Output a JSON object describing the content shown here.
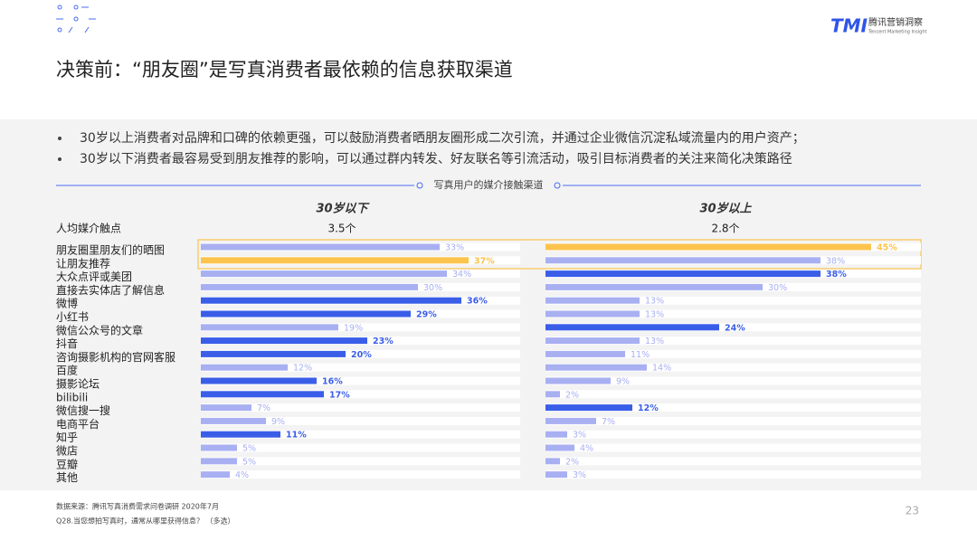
{
  "header": {
    "logo": "TMI",
    "brand": "腾讯营销洞察",
    "brand_en": "Tencent Marketing Insight"
  },
  "title": "决策前：“朋友圈”是写真消费者最依赖的信息获取渠道",
  "bullets": [
    "30岁以上消费者对品牌和口碑的依赖更强，可以鼓励消费者晒朋友圈形成二次引流，并通过企业微信沉淀私域流量内的用户资产；",
    "30岁以下消费者最容易受到朋友推荐的影响，可以通过群内转发、好友联名等引流活动，吸引目标消费者的关注来简化决策路径"
  ],
  "chart_data": {
    "type": "bar",
    "orientation": "horizontal",
    "title": "写真用户的媒介接触渠道",
    "row_header": "人均媒介触点",
    "categories": [
      "朋友圈里朋友们的晒图",
      "让朋友推荐",
      "大众点评或美团",
      "直接去实体店了解信息",
      "微博",
      "小红书",
      "微信公众号的文章",
      "抖音",
      "咨询摄影机构的官网客服",
      "百度",
      "摄影论坛",
      "bilibili",
      "微信搜一搜",
      "电商平台",
      "知乎",
      "微店",
      "豆瓣",
      "其他"
    ],
    "series": [
      {
        "name": "30岁以下",
        "subtitle": "3.5个",
        "values": [
          33,
          37,
          34,
          30,
          36,
          29,
          19,
          23,
          20,
          12,
          16,
          17,
          7,
          9,
          11,
          5,
          5,
          4
        ],
        "value_labels": [
          "33%",
          "37%",
          "34%",
          "30%",
          "36%",
          "29%",
          "19%",
          "23%",
          "20%",
          "12%",
          "16%",
          "17%",
          "7%",
          "9%",
          "11%",
          "5%",
          "5%",
          "4%"
        ],
        "colors": [
          "#a8b0f2",
          "#fcc34d",
          "#a8b0f2",
          "#a8b0f2",
          "#3a5ee8",
          "#3a5ee8",
          "#a8b0f2",
          "#3a5ee8",
          "#3a5ee8",
          "#a8b0f2",
          "#3a5ee8",
          "#3a5ee8",
          "#a8b0f2",
          "#a8b0f2",
          "#3a5ee8",
          "#a8b0f2",
          "#a8b0f2",
          "#a8b0f2"
        ]
      },
      {
        "name": "30岁以上",
        "subtitle": "2.8个",
        "values": [
          45,
          38,
          38,
          30,
          13,
          13,
          24,
          13,
          11,
          14,
          9,
          2,
          12,
          7,
          3,
          4,
          2,
          3
        ],
        "value_labels": [
          "45%",
          "38%",
          "38%",
          "30%",
          "13%",
          "13%",
          "24%",
          "13%",
          "11%",
          "14%",
          "9%",
          "2%",
          "12%",
          "7%",
          "3%",
          "4%",
          "2%",
          "3%"
        ],
        "colors": [
          "#fcc34d",
          "#a8b0f2",
          "#3a5ee8",
          "#a8b0f2",
          "#a8b0f2",
          "#a8b0f2",
          "#3a5ee8",
          "#a8b0f2",
          "#a8b0f2",
          "#a8b0f2",
          "#a8b0f2",
          "#a8b0f2",
          "#3a5ee8",
          "#a8b0f2",
          "#a8b0f2",
          "#a8b0f2",
          "#a8b0f2",
          "#a8b0f2"
        ]
      }
    ]
  },
  "footer": {
    "source": "数据来源：腾讯写真消费需求问卷调研 2020年7月",
    "question": "Q28.当您想拍写真时，通常从哪里获得信息？ （多选）"
  },
  "page_number": "23"
}
